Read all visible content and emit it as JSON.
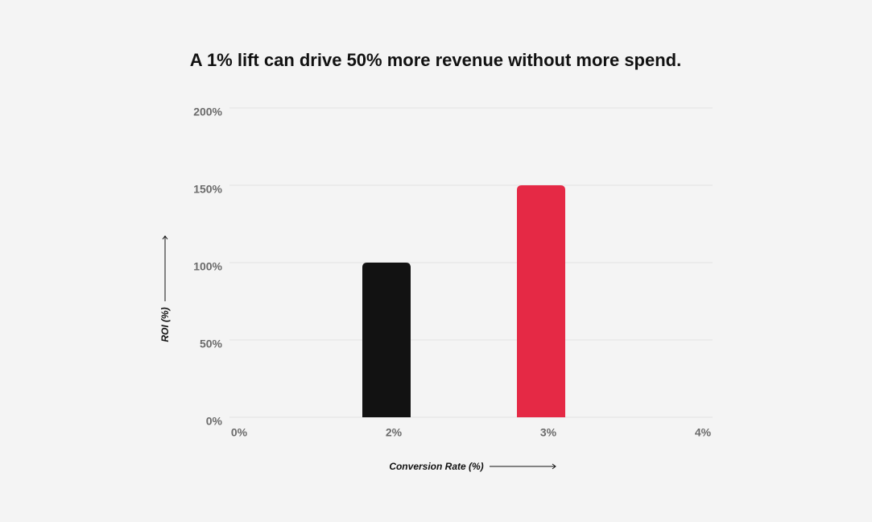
{
  "chart_data": {
    "type": "bar",
    "title": "A 1% lift can drive 50% more revenue without more spend.",
    "x_label": "Conversion Rate (%)",
    "y_label": "ROI (%)",
    "categories": [
      "0%",
      "2%",
      "3%",
      "4%"
    ],
    "values": [
      null,
      100,
      150,
      null
    ],
    "colors": [
      null,
      "#121212",
      "#e52945",
      null
    ],
    "ylim": [
      0,
      200
    ],
    "yticks": [
      {
        "value": 0,
        "label": "0%"
      },
      {
        "value": 50,
        "label": "50%"
      },
      {
        "value": 100,
        "label": "100%"
      },
      {
        "value": 150,
        "label": "150%"
      },
      {
        "value": 200,
        "label": "200%"
      }
    ],
    "grid": true
  }
}
